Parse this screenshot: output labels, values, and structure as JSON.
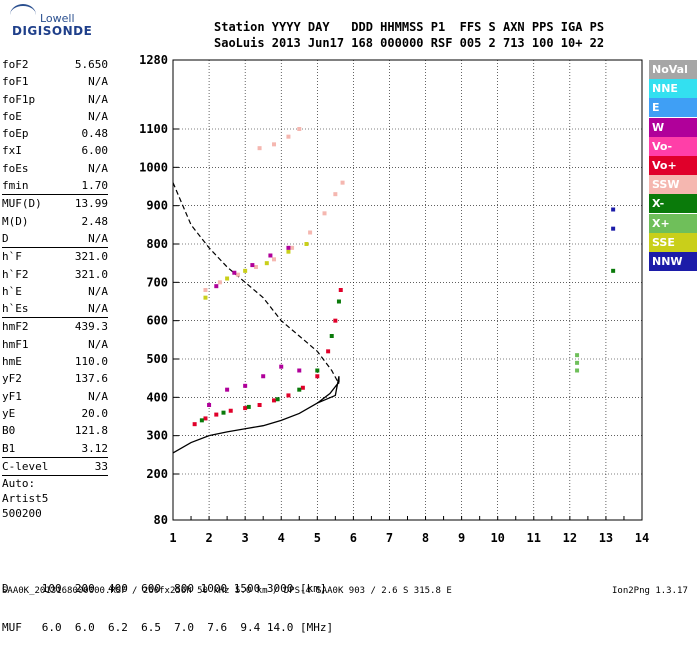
{
  "header": {
    "logo_top": "Lowell",
    "logo_bottom": "DIGISONDE",
    "line1": "Station YYYY DAY   DDD HHMMSS P1  FFS S AXN PPS IGA PS",
    "line2": "SaoLuis 2013 Jun17 168 000000 RSF 005 2 713 100 10+ 22"
  },
  "params": [
    {
      "name": "foF2",
      "value": "5.650"
    },
    {
      "name": "foF1",
      "value": "N/A"
    },
    {
      "name": "foF1p",
      "value": "N/A"
    },
    {
      "name": "foE",
      "value": "N/A"
    },
    {
      "name": "foEp",
      "value": "0.48"
    },
    {
      "name": "fxI",
      "value": "6.00"
    },
    {
      "name": "foEs",
      "value": "N/A"
    },
    {
      "name": "fmin",
      "value": "1.70"
    },
    {
      "name": "MUF(D)",
      "value": "13.99"
    },
    {
      "name": "M(D)",
      "value": "2.48"
    },
    {
      "name": "D",
      "value": "N/A"
    },
    {
      "name": "h`F",
      "value": "321.0"
    },
    {
      "name": "h`F2",
      "value": "321.0"
    },
    {
      "name": "h`E",
      "value": "N/A"
    },
    {
      "name": "h`Es",
      "value": "N/A"
    },
    {
      "name": "hmF2",
      "value": "439.3"
    },
    {
      "name": "hmF1",
      "value": "N/A"
    },
    {
      "name": "hmE",
      "value": "110.0"
    },
    {
      "name": "yF2",
      "value": "137.6"
    },
    {
      "name": "yF1",
      "value": "N/A"
    },
    {
      "name": "yE",
      "value": "20.0"
    },
    {
      "name": "B0",
      "value": "121.8"
    },
    {
      "name": "B1",
      "value": "3.12"
    },
    {
      "name": "C-level",
      "value": "33"
    }
  ],
  "auto_lines": [
    "Auto:",
    "Artist5",
    "500200"
  ],
  "legend": [
    {
      "label": "NoVal",
      "color": "#a6a6a6"
    },
    {
      "label": "NNE",
      "color": "#33e0f0"
    },
    {
      "label": "E",
      "color": "#3f9ff5"
    },
    {
      "label": "W",
      "color": "#b0009a"
    },
    {
      "label": "Vo-",
      "color": "#ff3fa8"
    },
    {
      "label": "Vo+",
      "color": "#e0002a"
    },
    {
      "label": "SSW",
      "color": "#f5b7b0"
    },
    {
      "label": "X-",
      "color": "#0a7a0a"
    },
    {
      "label": "X+",
      "color": "#6fbf5a"
    },
    {
      "label": "SSE",
      "color": "#c9cf1a"
    },
    {
      "label": "NNW",
      "color": "#1c1ca8"
    }
  ],
  "dmuf": {
    "d_line": "D     100  200  400  600  800 1000 1500 3000 [km]",
    "muf_line": "MUF   6.0  6.0  6.2  6.5  7.0  7.6  9.4 14.0 [MHz]"
  },
  "footer": {
    "left": "SAA0K_2013168000000.RSF / 260fx256h 50 kHz 5.0 km / DPS-4 SAA0K 903 / 2.6 S 315.8 E",
    "right": "Ion2Png 1.3.17"
  },
  "chart_data": {
    "type": "scatter",
    "x_ticks": [
      1,
      2,
      3,
      4,
      5,
      6,
      7,
      8,
      9,
      10,
      11,
      12,
      13,
      14
    ],
    "y_ticks": [
      80,
      200,
      300,
      400,
      500,
      600,
      700,
      800,
      900,
      1000,
      1100,
      1280
    ],
    "xlim": [
      1,
      14
    ],
    "ylim": [
      80,
      1280
    ],
    "grid": true,
    "series": [
      {
        "points": [
          [
            1.6,
            330
          ],
          [
            1.9,
            345
          ],
          [
            2.2,
            355
          ],
          [
            2.6,
            365
          ],
          [
            3.0,
            372
          ],
          [
            3.4,
            380
          ],
          [
            3.8,
            392
          ],
          [
            4.2,
            405
          ],
          [
            4.6,
            425
          ],
          [
            5.0,
            455
          ],
          [
            5.3,
            520
          ],
          [
            5.5,
            600
          ],
          [
            5.65,
            680
          ]
        ],
        "color": "#e0002a"
      },
      {
        "points": [
          [
            1.8,
            340
          ],
          [
            2.4,
            360
          ],
          [
            3.1,
            375
          ],
          [
            3.9,
            395
          ],
          [
            4.5,
            420
          ],
          [
            5.0,
            470
          ],
          [
            5.4,
            560
          ],
          [
            5.6,
            650
          ]
        ],
        "color": "#0a7a0a"
      },
      {
        "points": [
          [
            2.0,
            380
          ],
          [
            2.5,
            420
          ],
          [
            3.0,
            430
          ],
          [
            3.5,
            455
          ],
          [
            4.0,
            480
          ],
          [
            4.5,
            470
          ]
        ],
        "color": "#b0009a"
      },
      {
        "points": [
          [
            1.9,
            680
          ],
          [
            2.3,
            700
          ],
          [
            2.8,
            720
          ],
          [
            3.3,
            740
          ],
          [
            3.8,
            760
          ],
          [
            4.3,
            790
          ],
          [
            4.8,
            830
          ],
          [
            5.2,
            880
          ],
          [
            5.5,
            930
          ],
          [
            5.7,
            960
          ]
        ],
        "color": "#f5b7b0"
      },
      {
        "points": [
          [
            1.9,
            660
          ],
          [
            2.5,
            710
          ],
          [
            3.0,
            730
          ],
          [
            3.6,
            750
          ],
          [
            4.2,
            780
          ],
          [
            4.7,
            800
          ]
        ],
        "color": "#c9cf1a"
      },
      {
        "points": [
          [
            2.2,
            690
          ],
          [
            2.7,
            725
          ],
          [
            3.2,
            745
          ],
          [
            3.7,
            770
          ],
          [
            4.2,
            790
          ]
        ],
        "color": "#b0009a"
      },
      {
        "points": [
          [
            3.4,
            1050
          ],
          [
            3.8,
            1060
          ],
          [
            4.2,
            1080
          ],
          [
            4.5,
            1100
          ]
        ],
        "color": "#f5b7b0"
      },
      {
        "points": [
          [
            12.2,
            470
          ],
          [
            12.2,
            490
          ],
          [
            12.2,
            510
          ]
        ],
        "color": "#6fbf5a"
      },
      {
        "points": [
          [
            13.2,
            730
          ]
        ],
        "color": "#0a7a0a"
      },
      {
        "points": [
          [
            13.2,
            840
          ],
          [
            13.2,
            890
          ]
        ],
        "color": "#1c1ca8"
      }
    ],
    "profile": [
      [
        1.0,
        255
      ],
      [
        1.5,
        282
      ],
      [
        2.0,
        300
      ],
      [
        2.5,
        310
      ],
      [
        3.0,
        318
      ],
      [
        3.5,
        326
      ],
      [
        4.0,
        340
      ],
      [
        4.5,
        358
      ],
      [
        5.0,
        385
      ],
      [
        5.35,
        410
      ],
      [
        5.6,
        440
      ],
      [
        5.6,
        455
      ],
      [
        5.5,
        405
      ],
      [
        5.0,
        385
      ]
    ],
    "muf_curve": [
      [
        1.0,
        960
      ],
      [
        1.5,
        850
      ],
      [
        2.0,
        790
      ],
      [
        2.5,
        740
      ],
      [
        3.0,
        700
      ],
      [
        3.5,
        660
      ],
      [
        4.0,
        600
      ],
      [
        4.5,
        560
      ],
      [
        5.0,
        520
      ],
      [
        5.4,
        470
      ],
      [
        5.6,
        435
      ]
    ]
  }
}
